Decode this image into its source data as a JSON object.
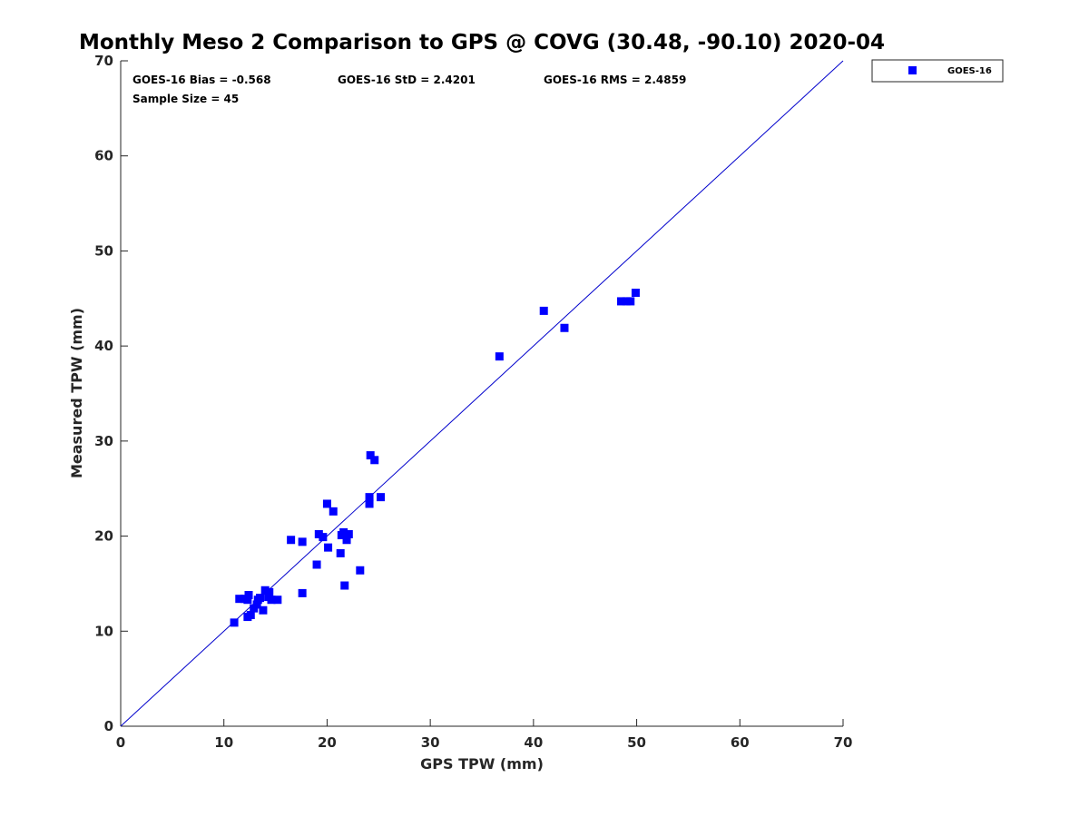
{
  "chart_data": {
    "type": "scatter",
    "title": "Monthly Meso 2 Comparison to GPS @ COVG (30.48, -90.10) 2020-04",
    "xlabel": "GPS TPW (mm)",
    "ylabel": "Measured TPW (mm)",
    "xlim": [
      0,
      70
    ],
    "ylim": [
      0,
      70
    ],
    "xticks": [
      "0",
      "10",
      "20",
      "30",
      "40",
      "50",
      "60",
      "70"
    ],
    "yticks": [
      "0",
      "10",
      "20",
      "30",
      "40",
      "50",
      "60",
      "70"
    ],
    "grid": false,
    "legend": "top-right outside",
    "reference_line": {
      "x": [
        0,
        70
      ],
      "y": [
        0,
        70
      ],
      "color": "#0000cc"
    },
    "annotations": {
      "bias": "GOES-16 Bias = -0.568",
      "std": "GOES-16 StD = 2.4201",
      "rms": "GOES-16 RMS = 2.4859",
      "sample": "Sample Size = 45"
    },
    "series": [
      {
        "name": "GOES-16",
        "color": "#0000ff",
        "marker": "square",
        "points": [
          [
            11.0,
            10.9
          ],
          [
            11.5,
            13.4
          ],
          [
            12.0,
            13.4
          ],
          [
            12.3,
            11.5
          ],
          [
            12.3,
            13.3
          ],
          [
            12.4,
            13.8
          ],
          [
            12.6,
            11.7
          ],
          [
            12.9,
            12.4
          ],
          [
            13.2,
            12.8
          ],
          [
            13.3,
            13.3
          ],
          [
            13.5,
            13.5
          ],
          [
            13.8,
            12.2
          ],
          [
            14.0,
            14.3
          ],
          [
            14.3,
            13.6
          ],
          [
            14.4,
            14.1
          ],
          [
            14.6,
            13.3
          ],
          [
            15.2,
            13.3
          ],
          [
            16.5,
            19.6
          ],
          [
            17.6,
            19.4
          ],
          [
            17.6,
            14.0
          ],
          [
            19.0,
            17.0
          ],
          [
            19.2,
            20.2
          ],
          [
            19.6,
            19.9
          ],
          [
            20.0,
            23.4
          ],
          [
            20.1,
            18.8
          ],
          [
            20.6,
            22.6
          ],
          [
            21.3,
            18.2
          ],
          [
            21.4,
            20.1
          ],
          [
            21.6,
            20.4
          ],
          [
            21.7,
            14.8
          ],
          [
            21.9,
            19.6
          ],
          [
            22.1,
            20.2
          ],
          [
            23.2,
            16.4
          ],
          [
            24.1,
            23.4
          ],
          [
            24.1,
            24.1
          ],
          [
            24.2,
            28.5
          ],
          [
            24.6,
            28.0
          ],
          [
            25.2,
            24.1
          ],
          [
            36.7,
            38.9
          ],
          [
            41.0,
            43.7
          ],
          [
            43.0,
            41.9
          ],
          [
            48.5,
            44.7
          ],
          [
            49.0,
            44.7
          ],
          [
            49.4,
            44.7
          ],
          [
            49.9,
            45.6
          ]
        ]
      }
    ]
  }
}
